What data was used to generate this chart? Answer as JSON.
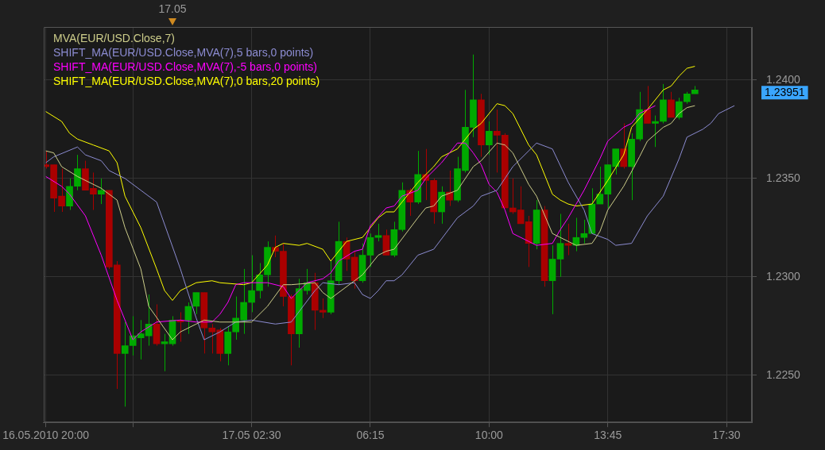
{
  "chart_data": {
    "type": "candlestick",
    "x": [
      "2010-05-16T20:00",
      "2010-05-16T20:15",
      "2010-05-16T20:30",
      "2010-05-16T20:45",
      "2010-05-16T21:00",
      "2010-05-16T21:15",
      "2010-05-16T21:30",
      "2010-05-16T21:45",
      "2010-05-16T22:00",
      "2010-05-16T22:15",
      "2010-05-16T22:30",
      "2010-05-16T22:45",
      "2010-05-16T23:00",
      "2010-05-16T23:15",
      "2010-05-16T23:30",
      "2010-05-16T23:45",
      "2010-05-17T00:00",
      "2010-05-17T00:15",
      "2010-05-17T00:30",
      "2010-05-17T00:45",
      "2010-05-17T01:00",
      "2010-05-17T01:15",
      "2010-05-17T01:30",
      "2010-05-17T01:45",
      "2010-05-17T02:00",
      "2010-05-17T02:15",
      "2010-05-17T02:30",
      "2010-05-17T02:45",
      "2010-05-17T03:00",
      "2010-05-17T03:15",
      "2010-05-17T03:30",
      "2010-05-17T03:45",
      "2010-05-17T04:00",
      "2010-05-17T04:15",
      "2010-05-17T04:30",
      "2010-05-17T04:45",
      "2010-05-17T05:00",
      "2010-05-17T05:15",
      "2010-05-17T05:30",
      "2010-05-17T05:45",
      "2010-05-17T06:00",
      "2010-05-17T06:15",
      "2010-05-17T06:30",
      "2010-05-17T06:45",
      "2010-05-17T07:00",
      "2010-05-17T07:15",
      "2010-05-17T07:30",
      "2010-05-17T07:45",
      "2010-05-17T08:00",
      "2010-05-17T08:15",
      "2010-05-17T08:30",
      "2010-05-17T08:45",
      "2010-05-17T09:00",
      "2010-05-17T09:15",
      "2010-05-17T09:30",
      "2010-05-17T09:45",
      "2010-05-17T10:00",
      "2010-05-17T10:15",
      "2010-05-17T10:30",
      "2010-05-17T10:45",
      "2010-05-17T11:00",
      "2010-05-17T11:15",
      "2010-05-17T11:30",
      "2010-05-17T11:45",
      "2010-05-17T12:00",
      "2010-05-17T12:15",
      "2010-05-17T12:30",
      "2010-05-17T12:45",
      "2010-05-17T13:00",
      "2010-05-17T13:15",
      "2010-05-17T13:30",
      "2010-05-17T13:45",
      "2010-05-17T14:00",
      "2010-05-17T14:15",
      "2010-05-17T14:30",
      "2010-05-17T14:45",
      "2010-05-17T15:00",
      "2010-05-17T15:15",
      "2010-05-17T15:30",
      "2010-05-17T15:45",
      "2010-05-17T16:00",
      "2010-05-17T16:15",
      "2010-05-17T16:30"
    ],
    "ohlc": [
      [
        1.2357,
        1.2364,
        1.2355,
        1.2356
      ],
      [
        1.2357,
        1.2357,
        1.2333,
        1.234
      ],
      [
        1.2341,
        1.2355,
        1.2333,
        1.2336
      ],
      [
        1.2336,
        1.235,
        1.2334,
        1.2346
      ],
      [
        1.2346,
        1.2362,
        1.2344,
        1.2355
      ],
      [
        1.2355,
        1.2359,
        1.2344,
        1.2344
      ],
      [
        1.2345,
        1.2353,
        1.2334,
        1.2342
      ],
      [
        1.2342,
        1.235,
        1.2337,
        1.2344
      ],
      [
        1.2344,
        1.2344,
        1.2304,
        1.2305
      ],
      [
        1.2306,
        1.2308,
        1.2243,
        1.2261
      ],
      [
        1.2261,
        1.2277,
        1.2234,
        1.2265
      ],
      [
        1.2265,
        1.228,
        1.226,
        1.227
      ],
      [
        1.2269,
        1.2278,
        1.2258,
        1.2271
      ],
      [
        1.227,
        1.2291,
        1.2265,
        1.2276
      ],
      [
        1.2276,
        1.2286,
        1.2265,
        1.2266
      ],
      [
        1.2266,
        1.2271,
        1.2252,
        1.2267
      ],
      [
        1.2266,
        1.228,
        1.2265,
        1.2278
      ],
      [
        1.2278,
        1.2282,
        1.2267,
        1.2277
      ],
      [
        1.2278,
        1.2287,
        1.2271,
        1.2285
      ],
      [
        1.2285,
        1.2292,
        1.2281,
        1.2292
      ],
      [
        1.2292,
        1.2292,
        1.2261,
        1.2274
      ],
      [
        1.2274,
        1.2276,
        1.2261,
        1.2272
      ],
      [
        1.2273,
        1.2274,
        1.2257,
        1.2261
      ],
      [
        1.2261,
        1.2275,
        1.2255,
        1.2272
      ],
      [
        1.2272,
        1.229,
        1.2268,
        1.2279
      ],
      [
        1.2278,
        1.2304,
        1.2271,
        1.2287
      ],
      [
        1.2287,
        1.2311,
        1.2282,
        1.2293
      ],
      [
        1.2293,
        1.2307,
        1.2289,
        1.2301
      ],
      [
        1.2301,
        1.2318,
        1.2295,
        1.2315
      ],
      [
        1.2315,
        1.2321,
        1.231,
        1.2313
      ],
      [
        1.2313,
        1.2317,
        1.2285,
        1.229
      ],
      [
        1.229,
        1.2291,
        1.2255,
        1.2271
      ],
      [
        1.2271,
        1.2299,
        1.2264,
        1.2294
      ],
      [
        1.2293,
        1.2304,
        1.2291,
        1.2297
      ],
      [
        1.2297,
        1.2302,
        1.2273,
        1.2283
      ],
      [
        1.2283,
        1.2289,
        1.2279,
        1.2282
      ],
      [
        1.2282,
        1.2308,
        1.2281,
        1.2298
      ],
      [
        1.2298,
        1.2328,
        1.2296,
        1.2318
      ],
      [
        1.2318,
        1.232,
        1.2303,
        1.2309
      ],
      [
        1.231,
        1.2313,
        1.2294,
        1.2298
      ],
      [
        1.2298,
        1.2317,
        1.2297,
        1.2311
      ],
      [
        1.2311,
        1.2322,
        1.2305,
        1.232
      ],
      [
        1.232,
        1.2327,
        1.2318,
        1.2321
      ],
      [
        1.2321,
        1.2324,
        1.2311,
        1.2311
      ],
      [
        1.2311,
        1.2328,
        1.231,
        1.2324
      ],
      [
        1.2324,
        1.2348,
        1.2323,
        1.2344
      ],
      [
        1.2344,
        1.2345,
        1.2331,
        1.2338
      ],
      [
        1.2338,
        1.2364,
        1.2337,
        1.2352
      ],
      [
        1.2352,
        1.2365,
        1.2339,
        1.2349
      ],
      [
        1.2349,
        1.235,
        1.2327,
        1.2333
      ],
      [
        1.2333,
        1.2346,
        1.2327,
        1.2343
      ],
      [
        1.2343,
        1.2354,
        1.2336,
        1.2339
      ],
      [
        1.2339,
        1.2361,
        1.2338,
        1.2355
      ],
      [
        1.2354,
        1.2395,
        1.2353,
        1.2376
      ],
      [
        1.2376,
        1.2413,
        1.2371,
        1.239
      ],
      [
        1.239,
        1.2393,
        1.2361,
        1.2367
      ],
      [
        1.2367,
        1.2379,
        1.2362,
        1.2374
      ],
      [
        1.2374,
        1.2385,
        1.2353,
        1.2372
      ],
      [
        1.2372,
        1.2373,
        1.2335,
        1.2335
      ],
      [
        1.2335,
        1.235,
        1.2332,
        1.2333
      ],
      [
        1.2334,
        1.2346,
        1.2327,
        1.2327
      ],
      [
        1.2328,
        1.2331,
        1.2305,
        1.2317
      ],
      [
        1.2317,
        1.2339,
        1.2314,
        1.2334
      ],
      [
        1.2334,
        1.2336,
        1.2295,
        1.2298
      ],
      [
        1.2298,
        1.2316,
        1.2281,
        1.2309
      ],
      [
        1.2309,
        1.2332,
        1.23,
        1.2317
      ],
      [
        1.2317,
        1.2327,
        1.2311,
        1.2316
      ],
      [
        1.2316,
        1.233,
        1.2313,
        1.232
      ],
      [
        1.232,
        1.2329,
        1.2317,
        1.2322
      ],
      [
        1.2322,
        1.2345,
        1.2322,
        1.2337
      ],
      [
        1.2337,
        1.2356,
        1.2337,
        1.2342
      ],
      [
        1.2342,
        1.2357,
        1.2335,
        1.2357
      ],
      [
        1.2356,
        1.2365,
        1.2352,
        1.2365
      ],
      [
        1.2365,
        1.2378,
        1.2355,
        1.2356
      ],
      [
        1.2356,
        1.2373,
        1.2339,
        1.237
      ],
      [
        1.237,
        1.2394,
        1.2369,
        1.2385
      ],
      [
        1.2385,
        1.2397,
        1.2378,
        1.2378
      ],
      [
        1.2378,
        1.2382,
        1.2366,
        1.2379
      ],
      [
        1.2379,
        1.2398,
        1.2378,
        1.239
      ],
      [
        1.239,
        1.2394,
        1.2381,
        1.2381
      ],
      [
        1.2381,
        1.2391,
        1.238,
        1.2389
      ],
      [
        1.2389,
        1.2394,
        1.2388,
        1.2393
      ],
      [
        1.2393,
        1.2397,
        1.2393,
        1.2395
      ]
    ],
    "colors": [
      "#aa0000",
      "#aa0000",
      "#aa0000",
      "#00aa00",
      "#00aa00",
      "#aa0000",
      "#aa0000",
      "#00aa00",
      "#aa0000",
      "#aa0000",
      "#00aa00",
      "#00aa00",
      "#00aa00",
      "#00aa00",
      "#aa0000",
      "#00aa00",
      "#00aa00",
      "#aa0000",
      "#00aa00",
      "#00aa00",
      "#aa0000",
      "#aa0000",
      "#aa0000",
      "#00aa00",
      "#00aa00",
      "#00aa00",
      "#00aa00",
      "#00aa00",
      "#00aa00",
      "#aa0000",
      "#aa0000",
      "#aa0000",
      "#00aa00",
      "#00aa00",
      "#aa0000",
      "#aa0000",
      "#00aa00",
      "#00aa00",
      "#aa0000",
      "#aa0000",
      "#00aa00",
      "#00aa00",
      "#00aa00",
      "#aa0000",
      "#00aa00",
      "#00aa00",
      "#aa0000",
      "#00aa00",
      "#aa0000",
      "#aa0000",
      "#00aa00",
      "#aa0000",
      "#00aa00",
      "#00aa00",
      "#00aa00",
      "#aa0000",
      "#00aa00",
      "#aa0000",
      "#aa0000",
      "#aa0000",
      "#aa0000",
      "#aa0000",
      "#00aa00",
      "#aa0000",
      "#00aa00",
      "#00aa00",
      "#aa0000",
      "#00aa00",
      "#00aa00",
      "#00aa00",
      "#00aa00",
      "#00aa00",
      "#00aa00",
      "#aa0000",
      "#00aa00",
      "#00aa00",
      "#aa0000",
      "#00aa00",
      "#00aa00",
      "#aa0000",
      "#00aa00",
      "#00aa00",
      "#00aa00"
    ],
    "series": [
      {
        "name": "MVA(EUR/USD.Close,7)",
        "type": "line",
        "color": "#cdcd8a",
        "x": [
          "2010-05-16T20:00",
          "2010-05-16T20:15",
          "2010-05-16T20:30",
          "2010-05-16T21:00",
          "2010-05-16T21:45",
          "2010-05-16T22:15",
          "2010-05-16T22:30",
          "2010-05-16T23:00",
          "2010-05-16T23:15",
          "2010-05-17T00:00",
          "2010-05-17T00:15",
          "2010-05-17T00:45",
          "2010-05-17T01:00",
          "2010-05-17T01:30",
          "2010-05-17T02:00",
          "2010-05-17T02:30",
          "2010-05-17T03:00",
          "2010-05-17T03:30",
          "2010-05-17T03:45",
          "2010-05-17T04:30",
          "2010-05-17T04:45",
          "2010-05-17T05:00",
          "2010-05-17T05:45",
          "2010-05-17T06:00",
          "2010-05-17T06:30",
          "2010-05-17T06:45",
          "2010-05-17T07:00",
          "2010-05-17T07:45",
          "2010-05-17T08:00",
          "2010-05-17T08:15",
          "2010-05-17T08:30",
          "2010-05-17T09:00",
          "2010-05-17T09:30",
          "2010-05-17T09:45",
          "2010-05-17T10:15",
          "2010-05-17T10:30",
          "2010-05-17T10:45",
          "2010-05-17T11:15",
          "2010-05-17T11:30",
          "2010-05-17T12:00",
          "2010-05-17T12:30",
          "2010-05-17T12:45",
          "2010-05-17T13:15",
          "2010-05-17T13:30",
          "2010-05-17T13:45",
          "2010-05-17T14:15",
          "2010-05-17T14:45",
          "2010-05-17T15:00",
          "2010-05-17T15:30",
          "2010-05-17T15:45",
          "2010-05-17T16:00",
          "2010-05-17T16:15",
          "2010-05-17T16:30"
        ],
        "values": [
          1.2364,
          1.2363,
          1.2356,
          1.2351,
          1.2345,
          1.2339,
          1.2325,
          1.2304,
          1.2285,
          1.2268,
          1.2272,
          1.2276,
          1.2278,
          1.2277,
          1.2277,
          1.2277,
          1.2285,
          1.2296,
          1.2296,
          1.2297,
          1.2292,
          1.2289,
          1.2298,
          1.2301,
          1.2311,
          1.2313,
          1.2314,
          1.233,
          1.2335,
          1.2336,
          1.2341,
          1.2344,
          1.2356,
          1.2359,
          1.2368,
          1.2367,
          1.2363,
          1.2347,
          1.2341,
          1.2322,
          1.2318,
          1.2316,
          1.2317,
          1.2323,
          1.2334,
          1.2346,
          1.2361,
          1.2369,
          1.2376,
          1.2378,
          1.2383,
          1.2386,
          1.2387
        ]
      },
      {
        "name": "SHIFT_MA(EUR/USD.Close,MVA(7),5 bars,0 points)",
        "type": "line",
        "color": "#8c8cd2",
        "x": [
          "2010-05-16T20:00",
          "2010-05-16T20:15",
          "2010-05-16T21:00",
          "2010-05-16T21:15",
          "2010-05-16T21:45",
          "2010-05-16T22:00",
          "2010-05-16T22:30",
          "2010-05-16T23:00",
          "2010-05-16T23:30",
          "2010-05-17T00:15",
          "2010-05-17T00:45",
          "2010-05-17T01:00",
          "2010-05-17T01:30",
          "2010-05-17T02:00",
          "2010-05-17T02:30",
          "2010-05-17T03:15",
          "2010-05-17T03:45",
          "2010-05-17T04:30",
          "2010-05-17T04:45",
          "2010-05-17T05:15",
          "2010-05-17T05:45",
          "2010-05-17T06:00",
          "2010-05-17T06:15",
          "2010-05-17T06:30",
          "2010-05-17T06:45",
          "2010-05-17T07:00",
          "2010-05-17T07:15",
          "2010-05-17T07:45",
          "2010-05-17T08:15",
          "2010-05-17T09:00",
          "2010-05-17T09:30",
          "2010-05-17T09:45",
          "2010-05-17T10:15",
          "2010-05-17T10:45",
          "2010-05-17T11:15",
          "2010-05-17T11:30",
          "2010-05-17T12:00",
          "2010-05-17T12:30",
          "2010-05-17T13:00",
          "2010-05-17T13:15",
          "2010-05-17T13:45",
          "2010-05-17T14:00",
          "2010-05-17T14:30",
          "2010-05-17T15:00",
          "2010-05-17T15:30",
          "2010-05-17T16:00",
          "2010-05-17T16:15",
          "2010-05-17T16:45",
          "2010-05-17T17:00",
          "2010-05-17T17:15",
          "2010-05-17T17:45"
        ],
        "values": [
          1.2358,
          1.2361,
          1.2366,
          1.2362,
          1.2359,
          1.2354,
          1.235,
          1.2344,
          1.2338,
          1.2304,
          1.2279,
          1.2268,
          1.2272,
          1.2277,
          1.2278,
          1.2276,
          1.2277,
          1.2293,
          1.2297,
          1.2296,
          1.2297,
          1.2291,
          1.2289,
          1.2293,
          1.2298,
          1.2298,
          1.2301,
          1.2311,
          1.2314,
          1.233,
          1.2336,
          1.2341,
          1.2344,
          1.2356,
          1.2364,
          1.2368,
          1.2365,
          1.2348,
          1.2334,
          1.2322,
          1.2319,
          1.2316,
          1.2317,
          1.2331,
          1.2341,
          1.236,
          1.2371,
          1.2375,
          1.2378,
          1.2383,
          1.2387
        ]
      },
      {
        "name": "SHIFT_MA(EUR/USD.Close,MVA(7),-5 bars,0 points)",
        "type": "line",
        "color": "#ff00ff",
        "x": [
          "2010-05-16T20:00",
          "2010-05-16T20:30",
          "2010-05-16T20:45",
          "2010-05-16T21:15",
          "2010-05-16T21:45",
          "2010-05-16T22:15",
          "2010-05-16T22:45",
          "2010-05-16T23:00",
          "2010-05-16T23:30",
          "2010-05-17T00:15",
          "2010-05-17T00:45",
          "2010-05-17T01:15",
          "2010-05-17T01:30",
          "2010-05-17T01:45",
          "2010-05-17T02:00",
          "2010-05-17T02:15",
          "2010-05-17T03:00",
          "2010-05-17T03:30",
          "2010-05-17T03:45",
          "2010-05-17T04:15",
          "2010-05-17T04:45",
          "2010-05-17T05:00",
          "2010-05-17T05:15",
          "2010-05-17T05:45",
          "2010-05-17T06:00",
          "2010-05-17T06:15",
          "2010-05-17T06:45",
          "2010-05-17T07:00",
          "2010-05-17T07:15",
          "2010-05-17T07:45",
          "2010-05-17T08:00",
          "2010-05-17T08:30",
          "2010-05-17T09:00",
          "2010-05-17T09:15",
          "2010-05-17T09:30",
          "2010-05-17T09:45",
          "2010-05-17T10:00",
          "2010-05-17T10:15",
          "2010-05-17T10:30",
          "2010-05-17T10:45",
          "2010-05-17T11:15",
          "2010-05-17T11:30",
          "2010-05-17T12:00",
          "2010-05-17T12:15",
          "2010-05-17T12:30",
          "2010-05-17T12:45",
          "2010-05-17T13:00",
          "2010-05-17T13:30",
          "2010-05-17T13:45",
          "2010-05-17T14:15",
          "2010-05-17T14:30",
          "2010-05-17T14:45",
          "2010-05-17T15:15"
        ],
        "values": [
          1.2351,
          1.2346,
          1.2342,
          1.2331,
          1.2311,
          1.2288,
          1.2268,
          1.2272,
          1.2277,
          1.2278,
          1.2277,
          1.2277,
          1.2281,
          1.2287,
          1.2296,
          1.2297,
          1.2297,
          1.2295,
          1.2289,
          1.2297,
          1.2299,
          1.2302,
          1.2308,
          1.2313,
          1.2314,
          1.2326,
          1.2335,
          1.2336,
          1.2341,
          1.2344,
          1.235,
          1.2358,
          1.2368,
          1.2368,
          1.2363,
          1.2357,
          1.2347,
          1.2343,
          1.2334,
          1.2322,
          1.2318,
          1.2316,
          1.2317,
          1.2324,
          1.233,
          1.2337,
          1.2344,
          1.236,
          1.2369,
          1.2376,
          1.2378,
          1.2383,
          1.2387
        ]
      },
      {
        "name": "SHIFT_MA(EUR/USD.Close,MVA(7),0 bars,20 points)",
        "type": "line",
        "color": "#ffff00",
        "x": [
          "2010-05-16T20:00",
          "2010-05-16T20:30",
          "2010-05-16T20:45",
          "2010-05-16T21:00",
          "2010-05-16T21:30",
          "2010-05-16T22:00",
          "2010-05-16T22:15",
          "2010-05-16T22:30",
          "2010-05-16T23:00",
          "2010-05-16T23:30",
          "2010-05-16T23:45",
          "2010-05-17T00:00",
          "2010-05-17T00:15",
          "2010-05-17T00:45",
          "2010-05-17T01:15",
          "2010-05-17T01:30",
          "2010-05-17T02:15",
          "2010-05-17T02:30",
          "2010-05-17T03:00",
          "2010-05-17T03:15",
          "2010-05-17T03:30",
          "2010-05-17T04:00",
          "2010-05-17T04:15",
          "2010-05-17T04:45",
          "2010-05-17T05:00",
          "2010-05-17T05:30",
          "2010-05-17T06:00",
          "2010-05-17T06:30",
          "2010-05-17T06:45",
          "2010-05-17T07:00",
          "2010-05-17T07:45",
          "2010-05-17T08:15",
          "2010-05-17T08:30",
          "2010-05-17T09:00",
          "2010-05-17T09:30",
          "2010-05-17T09:45",
          "2010-05-17T10:15",
          "2010-05-17T10:30",
          "2010-05-17T10:45",
          "2010-05-17T11:15",
          "2010-05-17T11:30",
          "2010-05-17T12:00",
          "2010-05-17T12:15",
          "2010-05-17T12:30",
          "2010-05-17T12:45",
          "2010-05-17T13:15",
          "2010-05-17T13:45",
          "2010-05-17T14:15",
          "2010-05-17T14:30",
          "2010-05-17T15:00",
          "2010-05-17T15:30",
          "2010-05-17T15:45",
          "2010-05-17T16:00",
          "2010-05-17T16:15",
          "2010-05-17T16:30"
        ],
        "values": [
          1.2384,
          1.2379,
          1.2373,
          1.237,
          1.2367,
          1.2364,
          1.2358,
          1.2341,
          1.2325,
          1.2304,
          1.2293,
          1.2288,
          1.2293,
          1.2297,
          1.2298,
          1.2297,
          1.2296,
          1.2297,
          1.2306,
          1.2315,
          1.2317,
          1.2316,
          1.2317,
          1.2314,
          1.2308,
          1.2318,
          1.232,
          1.233,
          1.2333,
          1.2333,
          1.2348,
          1.2356,
          1.2361,
          1.2365,
          1.2375,
          1.2378,
          1.2388,
          1.2387,
          1.2383,
          1.2367,
          1.2362,
          1.2342,
          1.2339,
          1.2337,
          1.2336,
          1.2337,
          1.2349,
          1.2362,
          1.2376,
          1.2385,
          1.2395,
          1.2397,
          1.2402,
          1.2406,
          1.2407
        ]
      }
    ],
    "xlim": [
      "2010-05-16T19:56",
      "2010-05-17T18:18"
    ],
    "xticks": [
      {
        "value": "2010-05-16T20:00",
        "label": "16.05.2010 20:00"
      },
      {
        "value": "2010-05-16T22:45",
        "label": null
      },
      {
        "value": "2010-05-17T02:30",
        "label": "17.05 02:30"
      },
      {
        "value": "2010-05-17T06:15",
        "label": "06:15"
      },
      {
        "value": "2010-05-17T10:00",
        "label": "10:00"
      },
      {
        "value": "2010-05-17T13:45",
        "label": "13:45"
      },
      {
        "value": "2010-05-17T17:30",
        "label": "17:30"
      }
    ],
    "ylim": [
      1.2226,
      1.2427
    ],
    "yticks": [
      {
        "value": 1.225,
        "label": "1.2250"
      },
      {
        "value": 1.23,
        "label": "1.2300"
      },
      {
        "value": 1.235,
        "label": "1.2350"
      },
      {
        "value": 1.24,
        "label": "1.2400"
      }
    ],
    "grid": true,
    "legend": "top left",
    "annotations": [
      "17.05",
      "1.23951"
    ]
  }
}
